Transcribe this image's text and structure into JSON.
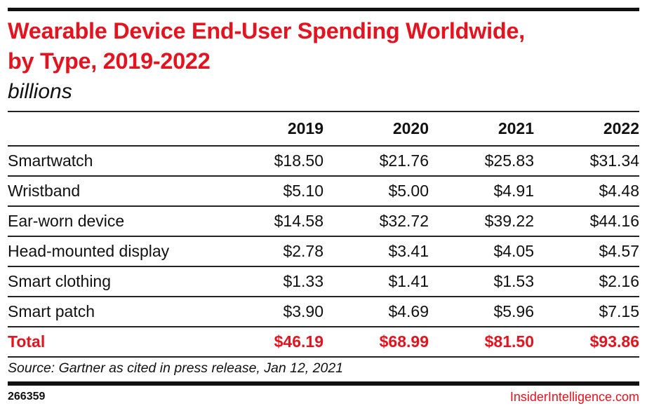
{
  "chart_data": {
    "type": "table",
    "title": "Wearable Device End-User Spending Worldwide, by Type, 2019-2022",
    "title_lines": [
      "Wearable Device End-User Spending Worldwide,",
      "by Type, 2019-2022"
    ],
    "subtitle": "billions",
    "columns": [
      "",
      "2019",
      "2020",
      "2021",
      "2022"
    ],
    "rows": [
      {
        "label": "Smartwatch",
        "values": [
          "$18.50",
          "$21.76",
          "$25.83",
          "$31.34"
        ]
      },
      {
        "label": "Wristband",
        "values": [
          "$5.10",
          "$5.00",
          "$4.91",
          "$4.48"
        ]
      },
      {
        "label": "Ear-worn device",
        "values": [
          "$14.58",
          "$32.72",
          "$39.22",
          "$44.16"
        ]
      },
      {
        "label": "Head-mounted display",
        "values": [
          "$2.78",
          "$3.41",
          "$4.05",
          "$4.57"
        ]
      },
      {
        "label": "Smart clothing",
        "values": [
          "$1.33",
          "$1.41",
          "$1.53",
          "$2.16"
        ]
      },
      {
        "label": "Smart patch",
        "values": [
          "$3.90",
          "$4.69",
          "$5.96",
          "$7.15"
        ]
      }
    ],
    "total": {
      "label": "Total",
      "values": [
        "$46.19",
        "$68.99",
        "$81.50",
        "$93.86"
      ]
    },
    "unit": "billions USD"
  },
  "footer": {
    "source": "Source: Gartner as cited in press release, Jan 12, 2021",
    "chart_id": "266359",
    "brand": "InsiderIntelligence.com"
  },
  "colors": {
    "accent": "#e1141f",
    "text": "#111111"
  }
}
